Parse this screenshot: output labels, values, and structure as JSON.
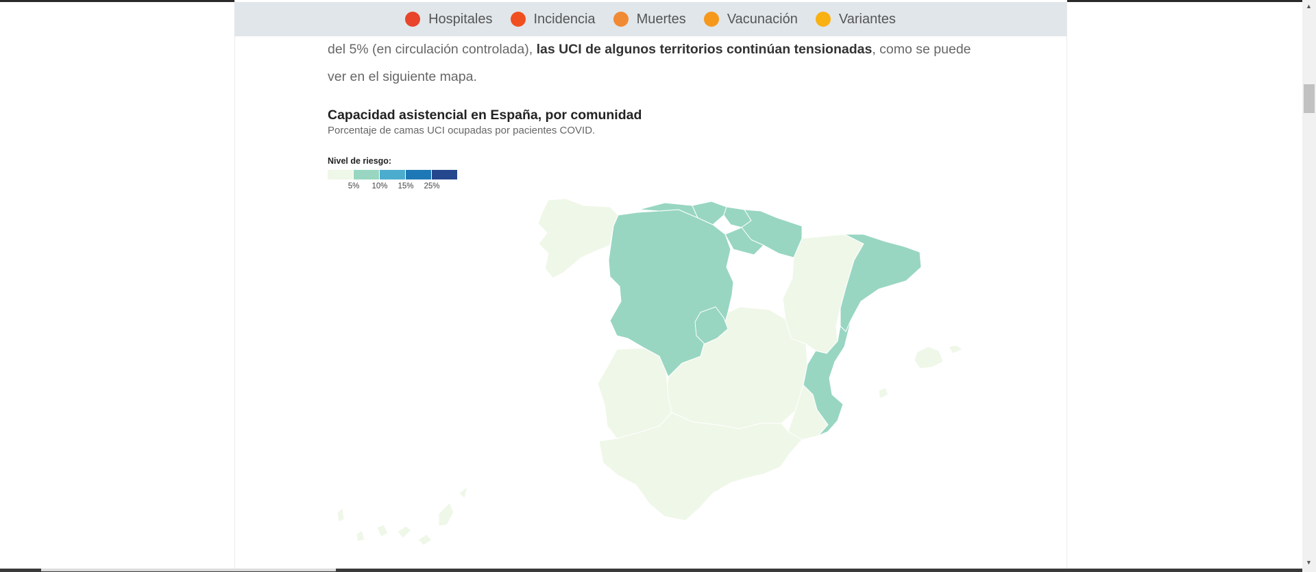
{
  "tags": [
    {
      "label": "Hospitales",
      "color": "#e8452b",
      "icon": "circle-icon"
    },
    {
      "label": "Incidencia",
      "color": "#f0501f",
      "icon": "circle-icon"
    },
    {
      "label": "Muertes",
      "color": "#f18a34",
      "icon": "circle-icon"
    },
    {
      "label": "Vacunación",
      "color": "#f5981c",
      "icon": "circle-icon"
    },
    {
      "label": "Variantes",
      "color": "#f9b011",
      "icon": "circle-icon"
    }
  ],
  "article": {
    "text_before": "del 5% (en circulación controlada), ",
    "text_bold": "las UCI de algunos territorios continúan tensionadas",
    "text_after": ", como se puede ver en el siguiente mapa."
  },
  "map": {
    "title": "Capacidad asistencial en España, por comunidad",
    "subtitle": "Porcentaje de camas UCI ocupadas por pacientes COVID.",
    "legend": {
      "title": "Nivel de riesgo:",
      "colors": [
        "#eff7e8",
        "#98d6c2",
        "#4bacce",
        "#1f78b6",
        "#25478e"
      ],
      "ticks": [
        "5%",
        "10%",
        "15%",
        "25%"
      ]
    },
    "colors": {
      "low": "#eff7e8",
      "mid": "#98d6c2"
    }
  }
}
